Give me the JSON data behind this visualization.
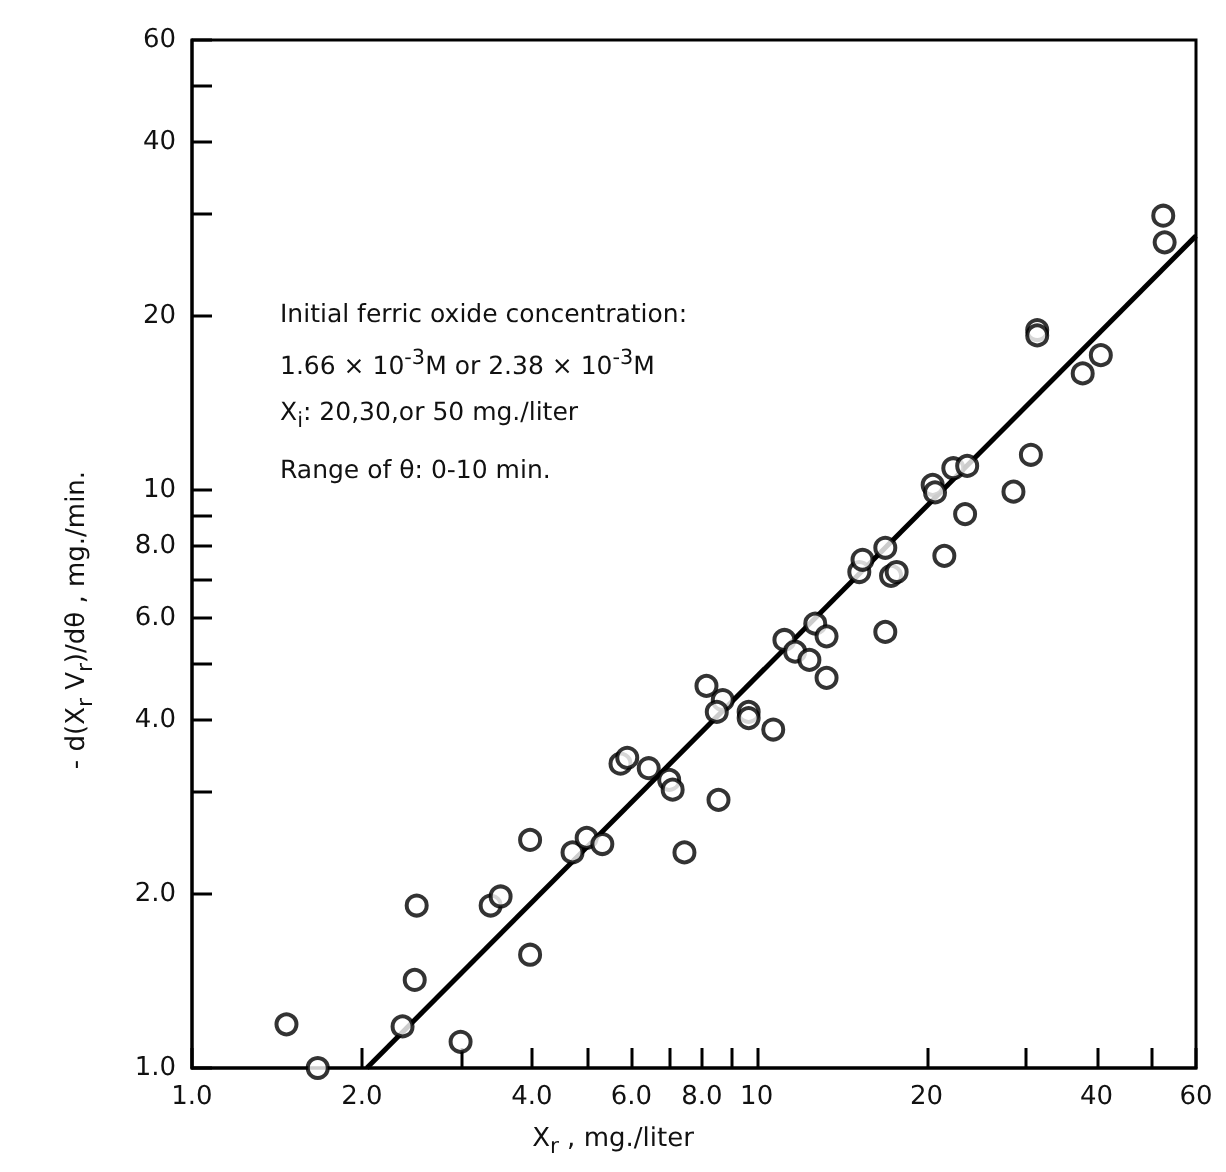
{
  "chart_data": {
    "type": "scatter",
    "xlabel": "X$_{r}$ , mg./liter",
    "ylabel": "- d(X$_{r}$ V$_{r}$)/dθ , mg./min.",
    "annotations": [
      "Initial ferric oxide concentration:",
      "1.66 × 10$^{-3}$M or 2.38 × 10$^{-3}$M",
      "X$_{i}$: 20,30,or 50 mg./liter",
      "Range of θ: 0-10 min."
    ],
    "log": "xy",
    "grid": false,
    "marker": "circle",
    "xlim": [
      1,
      60
    ],
    "ylim": [
      1,
      60
    ],
    "xticks": [
      {
        "value": 1,
        "label": "1.0"
      },
      {
        "value": 2,
        "label": "2.0"
      },
      {
        "value": 3,
        "label": null
      },
      {
        "value": 4,
        "label": "4.0"
      },
      {
        "value": 5,
        "label": null
      },
      {
        "value": 6,
        "label": "6.0"
      },
      {
        "value": 7,
        "label": null
      },
      {
        "value": 8,
        "label": "8.0"
      },
      {
        "value": 9,
        "label": null
      },
      10,
      20,
      {
        "value": 30,
        "label": null
      },
      40,
      {
        "value": 50,
        "label": null
      },
      60
    ],
    "yticks": [
      {
        "value": 1,
        "label": "1.0"
      },
      {
        "value": 2,
        "label": "2.0"
      },
      {
        "value": 3,
        "label": null
      },
      {
        "value": 4,
        "label": "4.0"
      },
      {
        "value": 5,
        "label": null
      },
      {
        "value": 6,
        "label": "6.0"
      },
      {
        "value": 7,
        "label": null
      },
      {
        "value": 8,
        "label": "8.0"
      },
      {
        "value": 9,
        "label": null
      },
      10,
      20,
      {
        "value": 30,
        "label": null
      },
      40,
      {
        "value": 50,
        "label": null
      },
      60
    ],
    "series": [
      {
        "color": "#000000",
        "x": [
          1.47,
          1.67,
          2.36,
          2.48,
          2.5,
          2.99,
          3.38,
          3.52,
          3.97,
          3.97,
          4.72,
          5.0,
          5.33,
          5.74,
          5.9,
          6.44,
          7.0,
          7.1,
          7.45,
          8.56,
          8.15,
          8.71,
          8.5,
          9.68,
          9.68,
          10.7,
          11.2,
          11.7,
          12.4,
          12.7,
          13.3,
          13.3,
          15.2,
          15.4,
          16.9,
          17.3,
          17.7,
          16.9,
          21.5,
          20.5,
          20.7,
          22.3,
          23.6,
          23.4,
          28.5,
          30.6,
          31.4,
          31.4,
          37.8,
          40.7,
          52.5,
          52.8
        ],
        "values": [
          1.19,
          1.0,
          1.18,
          1.42,
          1.91,
          1.11,
          1.91,
          1.98,
          2.48,
          1.57,
          2.36,
          2.5,
          2.44,
          3.36,
          3.44,
          3.3,
          3.15,
          3.03,
          2.36,
          2.91,
          4.58,
          4.33,
          4.13,
          4.13,
          4.03,
          3.85,
          5.5,
          5.25,
          5.08,
          5.87,
          5.58,
          4.73,
          7.21,
          7.57,
          7.94,
          7.1,
          7.21,
          5.68,
          7.69,
          10.2,
          9.9,
          10.9,
          11.0,
          9.08,
          9.93,
          11.5,
          18.9,
          18.5,
          15.9,
          17.1,
          29.8,
          26.8
        ]
      },
      {
        "type": "line",
        "color": "#000000",
        "marker": "none",
        "line_style": "solid",
        "x": [
          2.04,
          60
        ],
        "values": [
          1.0,
          27.5
        ]
      }
    ]
  }
}
